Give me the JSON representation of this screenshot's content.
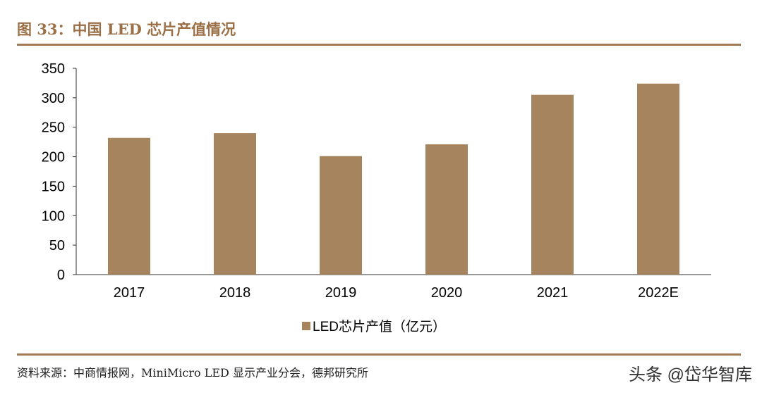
{
  "header": {
    "title": "图 33：中国 LED 芯片产值情况"
  },
  "footer": {
    "source": "资料来源：中商情报网，MiniMicro LED 显示产业分会，德邦研究所",
    "watermark": "头条 @岱华智库"
  },
  "chart_data": {
    "type": "bar",
    "categories": [
      "2017",
      "2018",
      "2019",
      "2020",
      "2021",
      "2022E"
    ],
    "series": [
      {
        "name": "LED芯片产值（亿元）",
        "values": [
          232,
          240,
          201,
          221,
          305,
          324
        ]
      }
    ],
    "ylim": [
      0,
      350
    ],
    "yticks": [
      0,
      50,
      100,
      150,
      200,
      250,
      300,
      350
    ],
    "grid": false,
    "legend": "bottom",
    "colors": {
      "bar": "#a6845d",
      "accent": "#a27b54"
    }
  }
}
